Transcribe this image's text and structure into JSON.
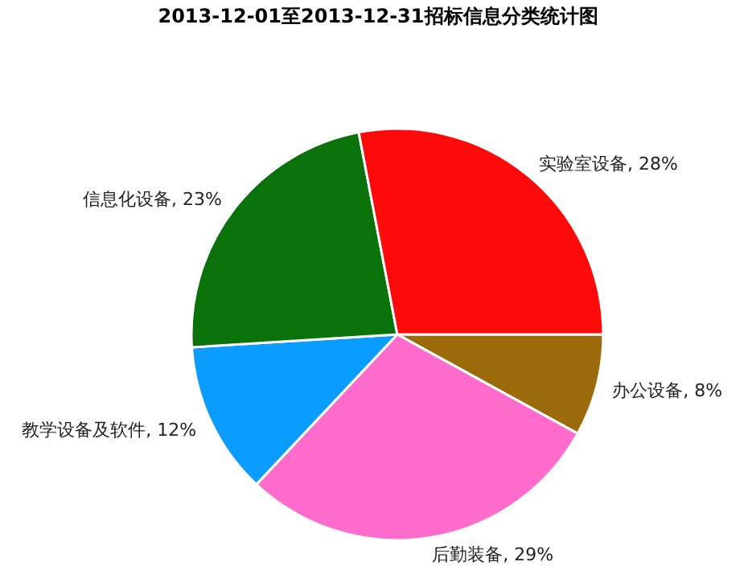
{
  "chart_data": {
    "type": "pie",
    "title": "2013-12-01至2013-12-31招标信息分类统计图",
    "categories": [
      "办公设备",
      "后勤装备",
      "教学设备及软件",
      "信息化设备",
      "实验室设备"
    ],
    "values": [
      8,
      29,
      12,
      23,
      28
    ],
    "colors": [
      "#9b6a0a",
      "#ff6ccc",
      "#0a9cff",
      "#0a720a",
      "#ff0a0a"
    ],
    "value_labels": [
      ", 8%",
      ", 29%",
      ", 12%",
      ", 23%",
      ", 28%"
    ]
  }
}
